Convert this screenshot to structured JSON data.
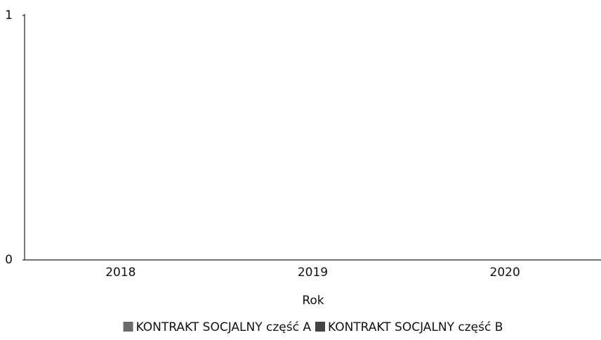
{
  "chart_data": {
    "type": "bar",
    "categories": [
      "2018",
      "2019",
      "2020"
    ],
    "series": [
      {
        "name": "KONTRAKT SOCJALNY część A",
        "color": "#6b6b6b",
        "values": [
          0,
          0,
          0
        ]
      },
      {
        "name": "KONTRAKT SOCJALNY część B",
        "color": "#444444",
        "values": [
          0,
          0,
          0
        ]
      }
    ],
    "x_label": "Rok",
    "ylim": [
      0,
      1
    ],
    "yticks": [
      0,
      1
    ],
    "grid": false
  }
}
